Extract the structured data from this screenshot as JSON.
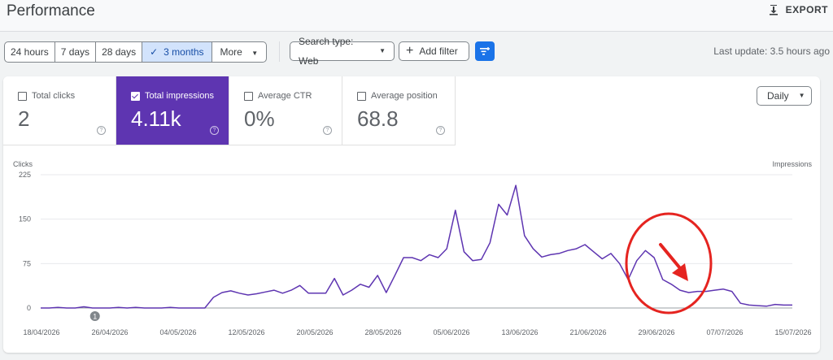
{
  "header": {
    "title": "Performance",
    "export_label": "EXPORT"
  },
  "date_range": {
    "options": [
      "24 hours",
      "7 days",
      "28 days",
      "3 months",
      "More"
    ],
    "selected": "3 months"
  },
  "filters": {
    "search_type": "Search type: Web",
    "add_filter": "Add filter"
  },
  "last_update": "Last update: 3.5 hours ago",
  "metrics": [
    {
      "label": "Total clicks",
      "value": "2",
      "active": false
    },
    {
      "label": "Total impressions",
      "value": "4.11k",
      "active": true
    },
    {
      "label": "Average CTR",
      "value": "0%",
      "active": false
    },
    {
      "label": "Average position",
      "value": "68.8",
      "active": false
    }
  ],
  "granularity": "Daily",
  "colors": {
    "impressions": "#5e35b1",
    "annotation": "#e52420",
    "filter_button": "#1a73e8"
  },
  "chart_data": {
    "type": "line",
    "ylabel_left": "Clicks",
    "ylabel_right": "Impressions",
    "yticks": [
      "225",
      "150",
      "75",
      "0"
    ],
    "ylim": [
      0,
      225
    ],
    "xticks": [
      "18/04/2026",
      "26/04/2026",
      "04/05/2026",
      "12/05/2026",
      "20/05/2026",
      "28/05/2026",
      "05/06/2026",
      "13/06/2026",
      "21/06/2026",
      "29/06/2026",
      "07/07/2026",
      "15/07/2026"
    ],
    "annotation_marker": "1",
    "grid": true,
    "series": [
      {
        "values": [
          0,
          0,
          1,
          0,
          0,
          2,
          0,
          0,
          0,
          1,
          0,
          1,
          0,
          0,
          0,
          1,
          0,
          0,
          0,
          0,
          18,
          26,
          29,
          25,
          22,
          24,
          27,
          30,
          25,
          30,
          38,
          25,
          25,
          25,
          50,
          22,
          30,
          40,
          35,
          55,
          26,
          55,
          85,
          85,
          80,
          90,
          85,
          100,
          165,
          95,
          80,
          82,
          110,
          175,
          157,
          207,
          122,
          100,
          86,
          90,
          92,
          97,
          100,
          107,
          95,
          83,
          92,
          75,
          48,
          80,
          97,
          85,
          48,
          40,
          30,
          26,
          28,
          28,
          30,
          32,
          28,
          8,
          5,
          4,
          3,
          6,
          5,
          5
        ]
      }
    ]
  }
}
